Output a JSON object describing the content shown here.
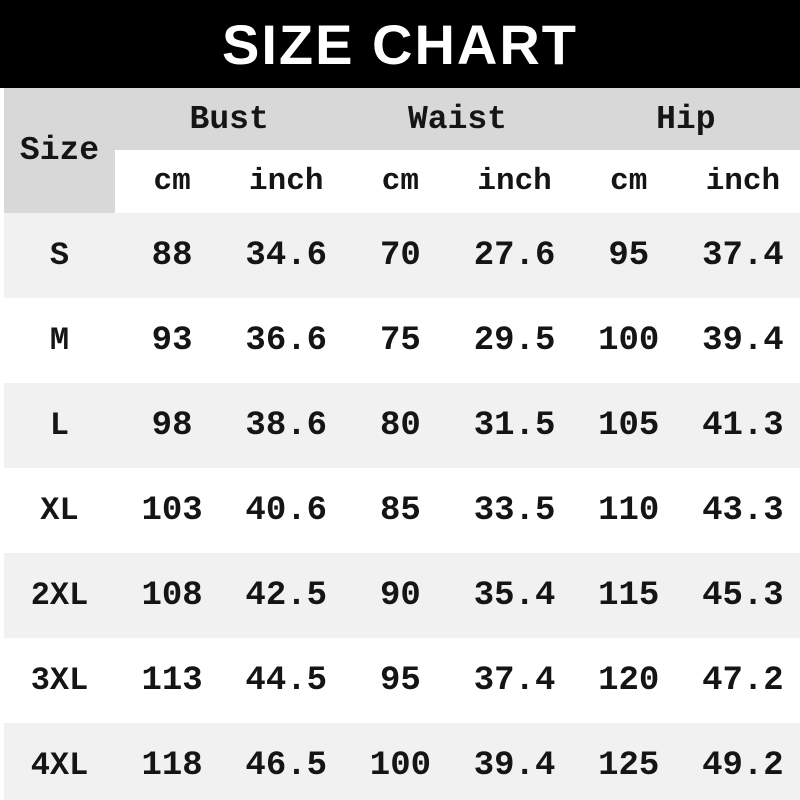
{
  "title": "SIZE CHART",
  "colors": {
    "banner_bg": "#000000",
    "banner_text": "#ffffff",
    "header_bg": "#d8d8d8",
    "row_stripe_bg": "#f1f1f1",
    "row_bg": "#ffffff",
    "text": "#151515"
  },
  "table": {
    "size_header": "Size",
    "group_headers": [
      "Bust",
      "Waist",
      "Hip"
    ],
    "unit_headers": [
      "cm",
      "inch",
      "cm",
      "inch",
      "cm",
      "inch"
    ],
    "rows": [
      {
        "size": "S",
        "values": [
          "88",
          "34.6",
          "70",
          "27.6",
          "95",
          "37.4"
        ]
      },
      {
        "size": "M",
        "values": [
          "93",
          "36.6",
          "75",
          "29.5",
          "100",
          "39.4"
        ]
      },
      {
        "size": "L",
        "values": [
          "98",
          "38.6",
          "80",
          "31.5",
          "105",
          "41.3"
        ]
      },
      {
        "size": "XL",
        "values": [
          "103",
          "40.6",
          "85",
          "33.5",
          "110",
          "43.3"
        ]
      },
      {
        "size": "2XL",
        "values": [
          "108",
          "42.5",
          "90",
          "35.4",
          "115",
          "45.3"
        ]
      },
      {
        "size": "3XL",
        "values": [
          "113",
          "44.5",
          "95",
          "37.4",
          "120",
          "47.2"
        ]
      },
      {
        "size": "4XL",
        "values": [
          "118",
          "46.5",
          "100",
          "39.4",
          "125",
          "49.2"
        ]
      }
    ]
  },
  "chart_data": {
    "type": "table",
    "title": "SIZE CHART",
    "column_groups": [
      "Bust",
      "Waist",
      "Hip"
    ],
    "columns": [
      "Size",
      "Bust cm",
      "Bust inch",
      "Waist cm",
      "Waist inch",
      "Hip cm",
      "Hip inch"
    ],
    "rows": [
      [
        "S",
        88,
        34.6,
        70,
        27.6,
        95,
        37.4
      ],
      [
        "M",
        93,
        36.6,
        75,
        29.5,
        100,
        39.4
      ],
      [
        "L",
        98,
        38.6,
        80,
        31.5,
        105,
        41.3
      ],
      [
        "XL",
        103,
        40.6,
        85,
        33.5,
        110,
        43.3
      ],
      [
        "2XL",
        108,
        42.5,
        90,
        35.4,
        115,
        45.3
      ],
      [
        "3XL",
        113,
        44.5,
        95,
        37.4,
        120,
        47.2
      ],
      [
        "4XL",
        118,
        46.5,
        100,
        39.4,
        125,
        49.2
      ]
    ]
  }
}
